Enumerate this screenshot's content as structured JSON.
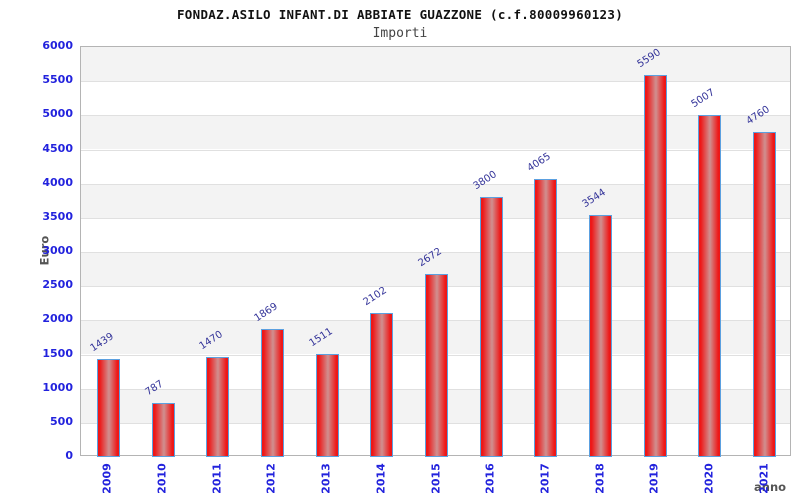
{
  "chart_data": {
    "type": "bar",
    "title": "FONDAZ.ASILO INFANT.DI ABBIATE GUAZZONE (c.f.80009960123)",
    "subtitle": "Importi",
    "xlabel": "anno",
    "ylabel": "Euro",
    "categories": [
      "2009",
      "2010",
      "2011",
      "2012",
      "2013",
      "2014",
      "2015",
      "2016",
      "2017",
      "2018",
      "2019",
      "2020",
      "2021"
    ],
    "values": [
      1439,
      787,
      1470,
      1869,
      1511,
      2102,
      2672,
      3800,
      4065,
      3544,
      5590,
      5007,
      4760
    ],
    "ylim": [
      0,
      6000
    ],
    "ytick_step": 500,
    "grid": true,
    "legend": "none",
    "colors": {
      "title_text": "#111111",
      "subtitle_text": "#444444",
      "axis_tick_label": "#2222dd",
      "bar_value_label": "#333399",
      "axis_title_label": "#555555",
      "bar_edge": "#ee1717",
      "bar_mid": "#d09090",
      "bar_border": "#5ba0e0",
      "band_gray": "#f3f3f3",
      "gridline": "#e0e0e0",
      "plot_border": "#b4b4b4"
    }
  }
}
